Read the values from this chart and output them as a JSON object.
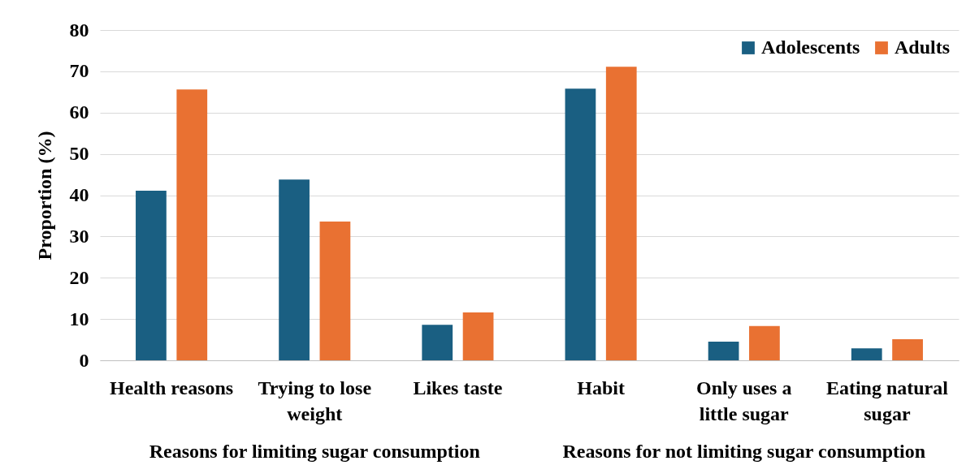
{
  "chart_data": {
    "type": "bar",
    "ylabel": "Proportion (%)",
    "categories": [
      "Health reasons",
      "Trying to lose weight",
      "Likes taste",
      "Habit",
      "Only uses a little sugar",
      "Eating natural sugar"
    ],
    "series": [
      {
        "name": "Adolescents",
        "color": "#1a5f82",
        "values": [
          41.1,
          43.8,
          8.6,
          65.8,
          4.5,
          2.9
        ]
      },
      {
        "name": "Adults",
        "color": "#e97132",
        "values": [
          65.6,
          33.6,
          11.6,
          71.1,
          8.3,
          5.1
        ]
      }
    ],
    "ylim": [
      0,
      80
    ],
    "yticks": [
      0,
      10,
      20,
      30,
      40,
      50,
      60,
      70,
      80
    ],
    "grid": "y",
    "legend": "top right",
    "annotations": [
      "Reasons for limiting sugar consumption",
      "Reasons for not limiting sugar consumption"
    ]
  }
}
